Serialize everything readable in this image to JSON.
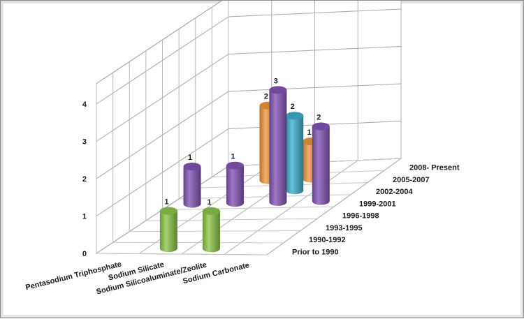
{
  "chart_data": {
    "type": "bar",
    "style": "3d-cylinder",
    "title": "",
    "xlabel": "",
    "ylabel": "",
    "ylim": [
      0,
      4
    ],
    "yticks": [
      "0",
      "1",
      "2",
      "3",
      "4"
    ],
    "grid": true,
    "legend": "none",
    "categories": [
      "Pentasodium Triphosphate",
      "Sodium Silicate",
      "Sodium Silicoaluminate/Zeolite",
      "Sodium Carbonate"
    ],
    "depth_labels": [
      "Prior to 1990",
      "1990-1992",
      "1993-1995",
      "1996-1998",
      "1999-2001",
      "2002-2004",
      "2005-2007",
      "2008- Present"
    ],
    "bars": [
      {
        "category": "Pentasodium Triphosphate",
        "series": "1999-2001",
        "value": 1,
        "color": "#8656b8"
      },
      {
        "category": "Sodium Silicate",
        "series": "Prior to 1990",
        "value": 1,
        "color": "#8ec94a"
      },
      {
        "category": "Sodium Silicate",
        "series": "1999-2001",
        "value": 1,
        "color": "#8656b8"
      },
      {
        "category": "Sodium Silicate",
        "series": "2005-2007",
        "value": 2,
        "color": "#f39a3e"
      },
      {
        "category": "Sodium Silicoaluminate/Zeolite",
        "series": "Prior to 1990",
        "value": 1,
        "color": "#8ec94a"
      },
      {
        "category": "Sodium Silicoaluminate/Zeolite",
        "series": "1999-2001",
        "value": 3,
        "color": "#8656b8"
      },
      {
        "category": "Sodium Silicoaluminate/Zeolite",
        "series": "2002-2004",
        "value": 2,
        "color": "#3fb3d1"
      },
      {
        "category": "Sodium Silicoaluminate/Zeolite",
        "series": "2005-2007",
        "value": 1,
        "color": "#f39a3e"
      },
      {
        "category": "Sodium Carbonate",
        "series": "1999-2001",
        "value": 2,
        "color": "#8656b8"
      }
    ]
  }
}
